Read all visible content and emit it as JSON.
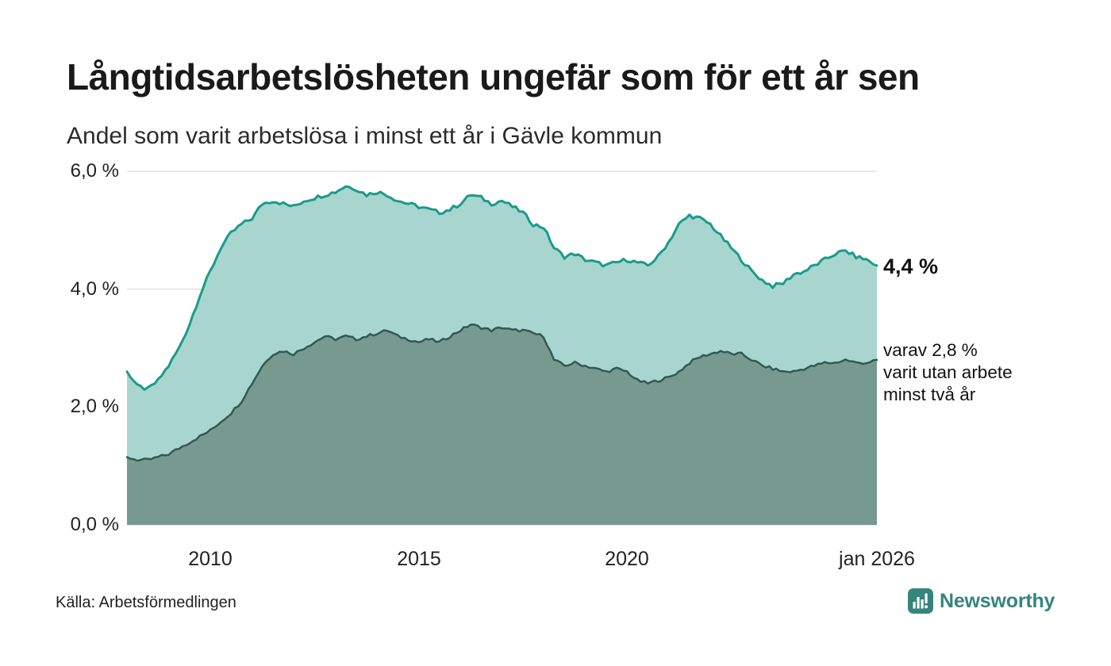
{
  "colors": {
    "background": "#ffffff",
    "title_text": "#1a1a1a",
    "axis_text": "#222222",
    "gridline": "#e0e0e0",
    "series1_line": "#1a9b8b",
    "series1_fill": "#a8d6ce",
    "series2_line": "#315a52",
    "series2_fill": "#779a90",
    "brand_teal": "#35857c"
  },
  "chart_data": {
    "type": "area",
    "title": "Långtidsarbetslösheten ungefär som för ett år sen",
    "subtitle": "Andel som varit arbetslösa i minst ett år i Gävle kommun",
    "x_range": [
      2008,
      2026
    ],
    "ylim": [
      0,
      6
    ],
    "grid": true,
    "legend_position": "none",
    "y_ticks": [
      {
        "value": 6,
        "label": "6,0 %"
      },
      {
        "value": 4,
        "label": "4,0 %"
      },
      {
        "value": 2,
        "label": "2,0 %"
      },
      {
        "value": 0,
        "label": "0,0 %"
      }
    ],
    "x_ticks": [
      {
        "value": 2010,
        "label": "2010"
      },
      {
        "value": 2015,
        "label": "2015"
      },
      {
        "value": 2020,
        "label": "2020"
      },
      {
        "value": 2026,
        "label": "jan 2026"
      }
    ],
    "x": [
      2008,
      2008.25,
      2008.5,
      2008.75,
      2009,
      2009.25,
      2009.5,
      2009.75,
      2010,
      2010.25,
      2010.5,
      2010.75,
      2011,
      2011.25,
      2011.5,
      2011.75,
      2012,
      2012.25,
      2012.5,
      2012.75,
      2013,
      2013.25,
      2013.5,
      2013.75,
      2014,
      2014.25,
      2014.5,
      2014.75,
      2015,
      2015.25,
      2015.5,
      2015.75,
      2016,
      2016.25,
      2016.5,
      2016.75,
      2017,
      2017.25,
      2017.5,
      2017.75,
      2018,
      2018.25,
      2018.5,
      2018.75,
      2019,
      2019.25,
      2019.5,
      2019.75,
      2020,
      2020.25,
      2020.5,
      2020.75,
      2021,
      2021.25,
      2021.5,
      2021.75,
      2022,
      2022.25,
      2022.5,
      2022.75,
      2023,
      2023.25,
      2023.5,
      2023.75,
      2024,
      2024.25,
      2024.5,
      2024.75,
      2025,
      2025.25,
      2025.5,
      2025.75,
      2026
    ],
    "series": [
      {
        "name": "Andel arbetslösa minst ett år",
        "line_color": "#1a9b8b",
        "fill_color": "#a8d6ce",
        "latest_value_pct": 4.4,
        "values": [
          2.6,
          2.35,
          2.3,
          2.45,
          2.7,
          3.0,
          3.4,
          3.9,
          4.3,
          4.7,
          4.95,
          5.1,
          5.2,
          5.45,
          5.5,
          5.45,
          5.4,
          5.5,
          5.55,
          5.6,
          5.65,
          5.75,
          5.7,
          5.6,
          5.65,
          5.6,
          5.5,
          5.45,
          5.4,
          5.35,
          5.3,
          5.35,
          5.45,
          5.6,
          5.55,
          5.45,
          5.5,
          5.4,
          5.3,
          5.1,
          5.05,
          4.7,
          4.55,
          4.6,
          4.5,
          4.45,
          4.4,
          4.45,
          4.5,
          4.45,
          4.4,
          4.55,
          4.8,
          5.1,
          5.25,
          5.2,
          5.1,
          4.9,
          4.7,
          4.5,
          4.3,
          4.15,
          4.05,
          4.1,
          4.25,
          4.3,
          4.4,
          4.5,
          4.6,
          4.65,
          4.55,
          4.5,
          4.4
        ]
      },
      {
        "name": "Andel utan arbete minst två år",
        "line_color": "#315a52",
        "fill_color": "#779a90",
        "latest_value_pct": 2.8,
        "values": [
          1.15,
          1.1,
          1.1,
          1.15,
          1.2,
          1.3,
          1.4,
          1.5,
          1.6,
          1.75,
          1.9,
          2.1,
          2.4,
          2.7,
          2.9,
          2.95,
          2.9,
          3.0,
          3.1,
          3.2,
          3.15,
          3.2,
          3.15,
          3.2,
          3.25,
          3.3,
          3.2,
          3.15,
          3.1,
          3.15,
          3.1,
          3.2,
          3.3,
          3.4,
          3.35,
          3.3,
          3.35,
          3.3,
          3.3,
          3.25,
          3.2,
          2.8,
          2.7,
          2.75,
          2.7,
          2.65,
          2.6,
          2.65,
          2.6,
          2.45,
          2.4,
          2.45,
          2.5,
          2.6,
          2.75,
          2.85,
          2.9,
          2.95,
          2.9,
          2.9,
          2.8,
          2.7,
          2.65,
          2.6,
          2.6,
          2.65,
          2.7,
          2.75,
          2.75,
          2.8,
          2.75,
          2.75,
          2.8
        ]
      }
    ],
    "annotations": {
      "primary": "4,4 %",
      "secondary": [
        "varav 2,8 %",
        "varit utan arbete",
        "minst två år"
      ]
    }
  },
  "footer": {
    "source": "Källa: Arbetsförmedlingen",
    "brand": "Newsworthy"
  }
}
